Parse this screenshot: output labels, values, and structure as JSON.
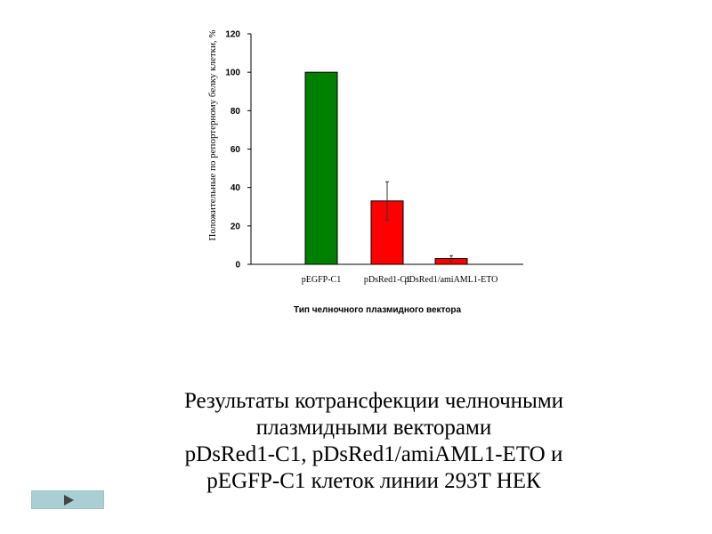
{
  "chart_data": {
    "type": "bar",
    "categories": [
      "pEGFP-C1",
      "pDsRed1-C1",
      "pDsRed1/amiAML1-ETO"
    ],
    "values": [
      100,
      33,
      3
    ],
    "errors": [
      0,
      10,
      1.5
    ],
    "colors": [
      "#008000",
      "#ff0000",
      "#ff0000"
    ],
    "ylabel": "Положительные по репортерному белку клетки, %",
    "xlabel": "Тип челночного плазмидного вектора",
    "ylim": [
      0,
      120
    ],
    "yticks": [
      "0",
      "20",
      "40",
      "60",
      "80",
      "100",
      "120"
    ],
    "grid": false
  },
  "caption": {
    "lines": [
      "Результаты котрансфекции челночными",
      "плазмидными векторами",
      "pDsRed1-C1, pDsRed1/amiAML1-ETO и",
      "pEGFP-C1 клеток линии 293T НЕК"
    ]
  },
  "nav": {
    "next_icon": "play-arrow-icon"
  }
}
